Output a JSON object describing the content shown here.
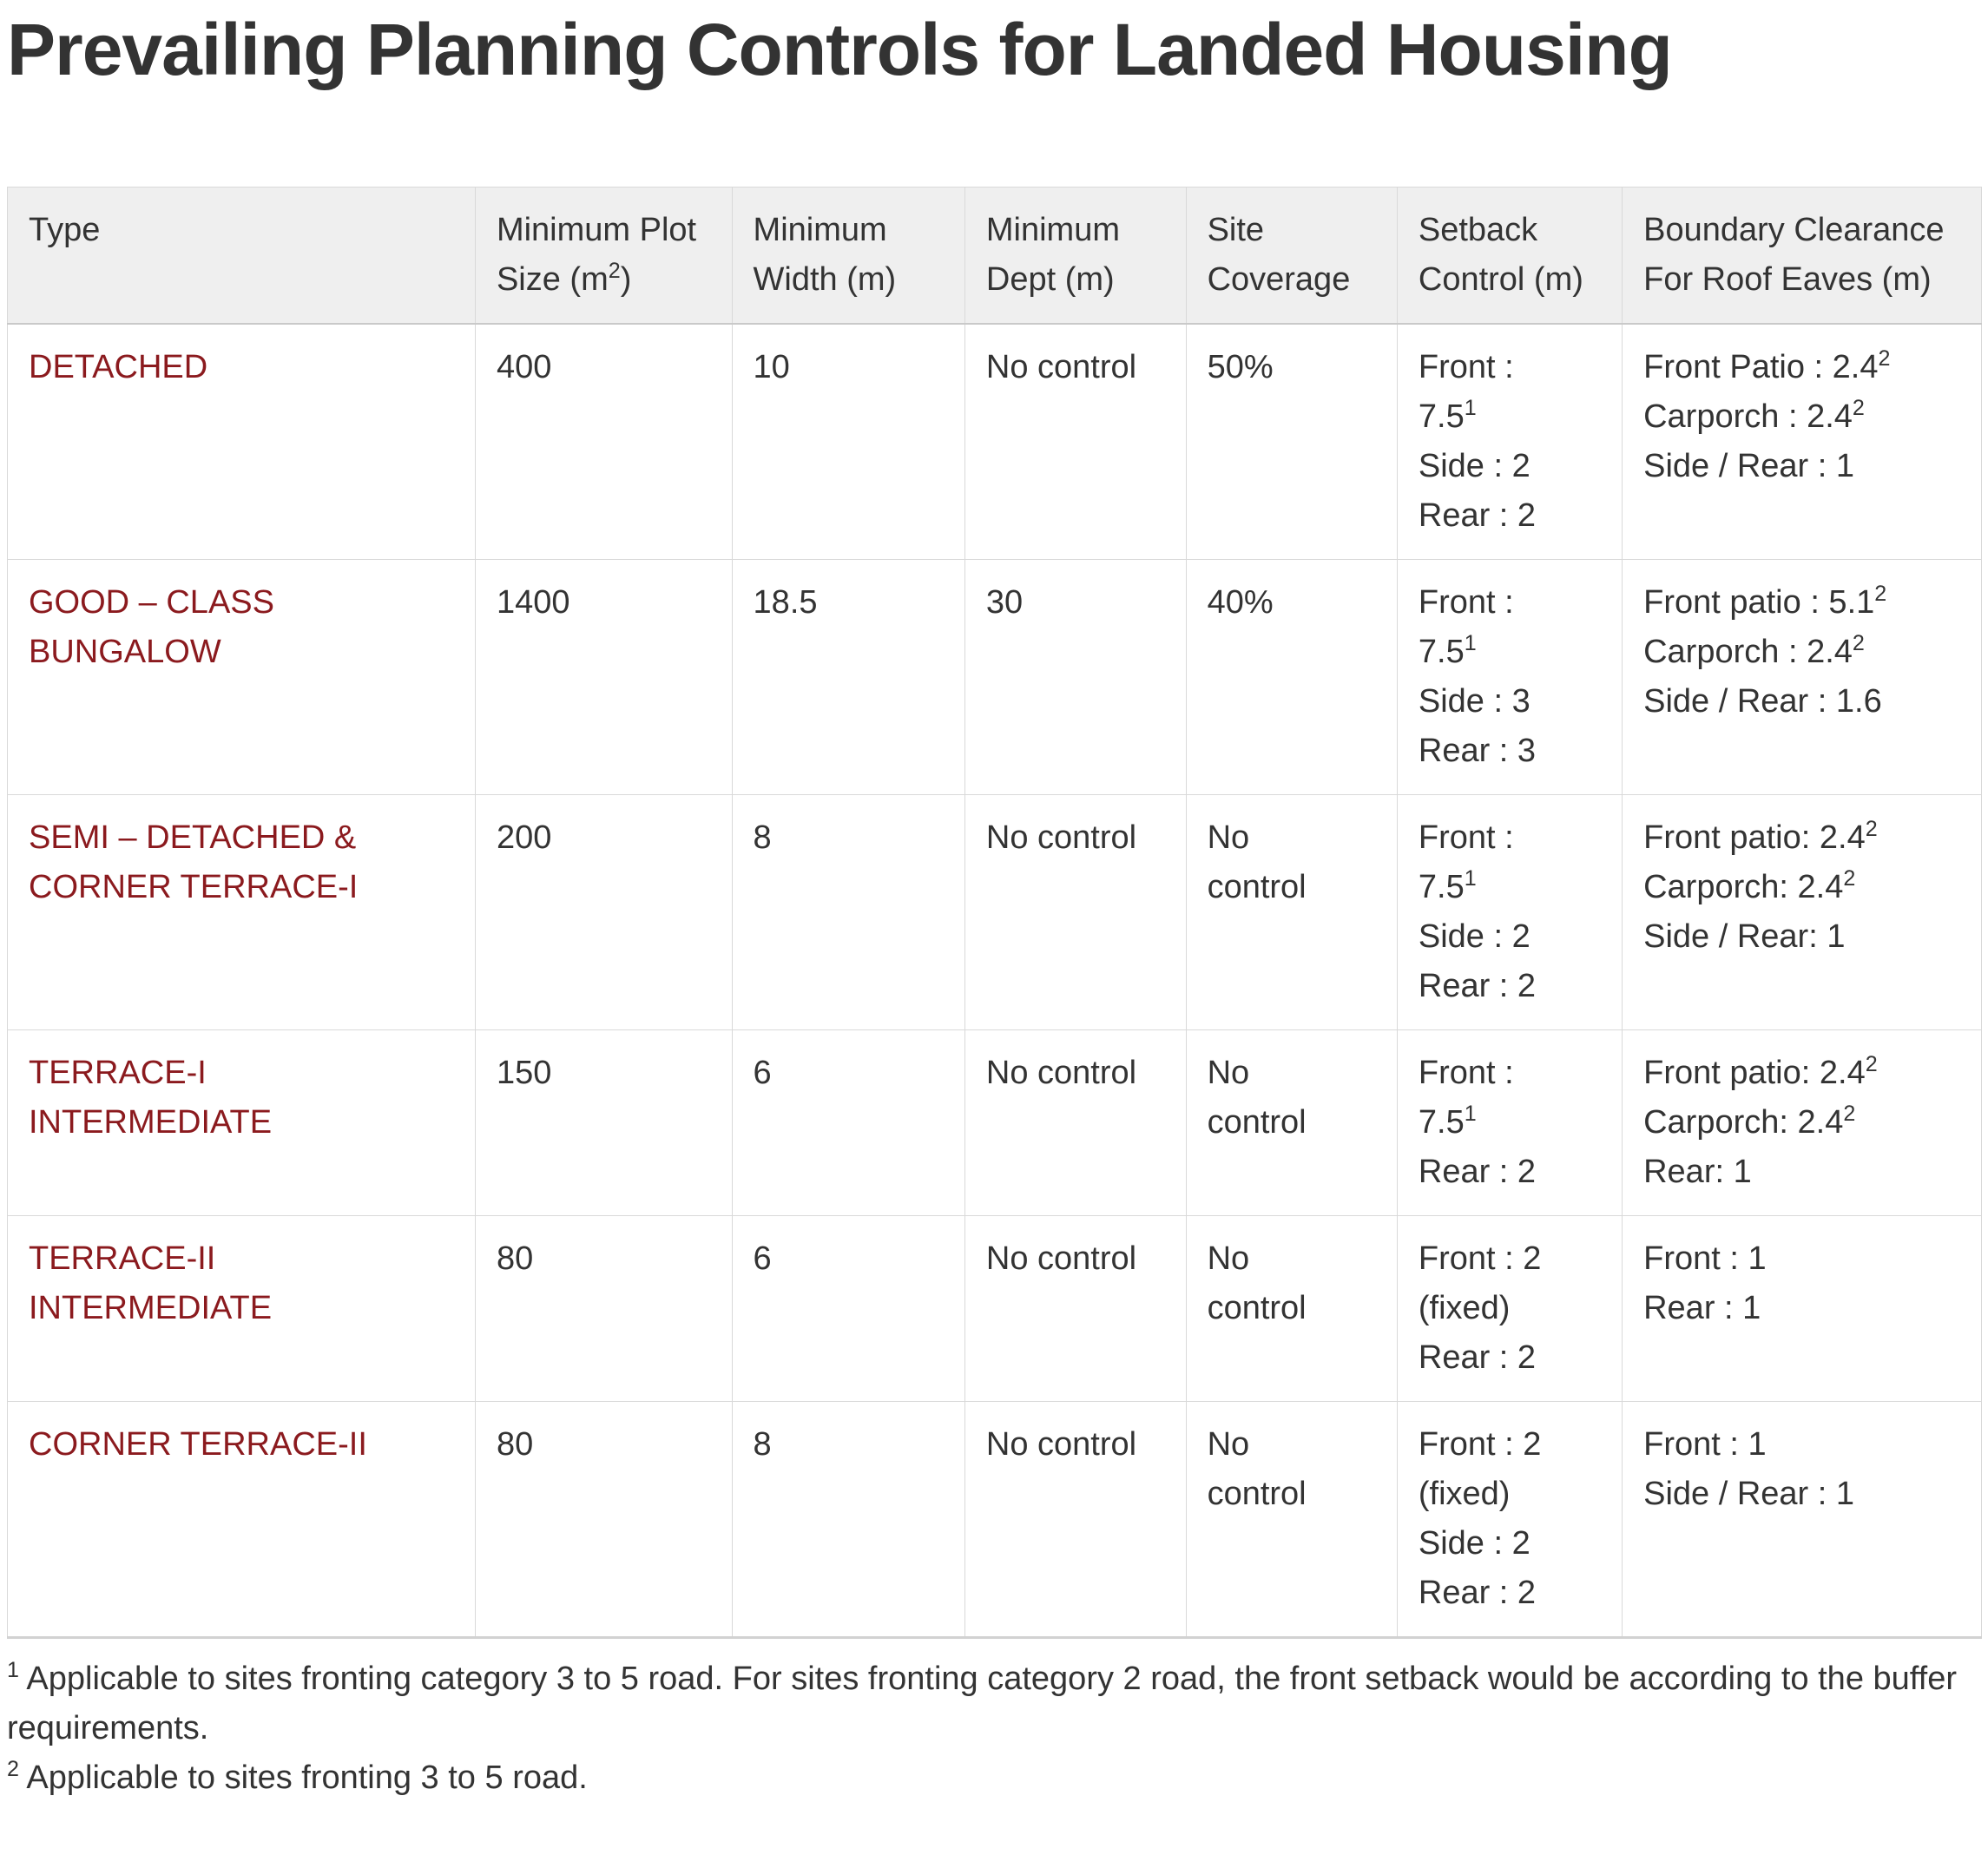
{
  "page": {
    "title": "Prevailing Planning Controls for Landed Housing"
  },
  "colors": {
    "type_text_accent": "#8B1A1E",
    "header_background": "#EFEFEF",
    "table_border": "#D9D9D9",
    "body_text": "#333333"
  },
  "table": {
    "columns": [
      {
        "label": "Type"
      },
      {
        "label": "Minimum Plot Size (m^{2})"
      },
      {
        "label": "Minimum Width (m)"
      },
      {
        "label": "Minimum Dept (m)"
      },
      {
        "label": "Site Coverage"
      },
      {
        "label": "Setback Control (m)"
      },
      {
        "label": "Boundary Clearance For Roof Eaves (m)"
      }
    ],
    "rows": [
      {
        "type": "DETACHED",
        "min_plot_size": "400",
        "min_width": "10",
        "min_dept": "No control",
        "site_coverage": "50%",
        "setback_control": "Front :\n7.5^{1}\nSide : 2\nRear : 2",
        "boundary_clearance": "Front Patio : 2.4^{2}\nCarporch : 2.4^{2}\nSide / Rear : 1"
      },
      {
        "type": "GOOD – CLASS BUNGALOW",
        "min_plot_size": "1400",
        "min_width": "18.5",
        "min_dept": "30",
        "site_coverage": "40%",
        "setback_control": "Front :\n7.5^{1}\nSide : 3\nRear : 3",
        "boundary_clearance": "Front patio : 5.1^{2}\nCarporch : 2.4^{2}\nSide / Rear : 1.6"
      },
      {
        "type": "SEMI – DETACHED & CORNER TERRACE-I",
        "min_plot_size": "200",
        "min_width": "8",
        "min_dept": "No control",
        "site_coverage": "No\ncontrol",
        "setback_control": "Front :\n7.5^{1}\nSide : 2\nRear : 2",
        "boundary_clearance": "Front patio: 2.4^{2}\nCarporch: 2.4^{2}\nSide / Rear: 1"
      },
      {
        "type": "TERRACE-I INTERMEDIATE",
        "min_plot_size": "150",
        "min_width": "6",
        "min_dept": "No control",
        "site_coverage": "No\ncontrol",
        "setback_control": "Front :\n7.5^{1}\nRear : 2",
        "boundary_clearance": "Front patio: 2.4^{2}\nCarporch: 2.4^{2}\nRear: 1"
      },
      {
        "type": "TERRACE-II INTERMEDIATE",
        "min_plot_size": "80",
        "min_width": "6",
        "min_dept": "No control",
        "site_coverage": "No\ncontrol",
        "setback_control": "Front : 2\n(fixed)\nRear : 2",
        "boundary_clearance": "Front : 1\nRear : 1"
      },
      {
        "type": "CORNER TERRACE-II",
        "min_plot_size": "80",
        "min_width": "8",
        "min_dept": "No control",
        "site_coverage": "No\ncontrol",
        "setback_control": "Front : 2\n(fixed)\nSide : 2\nRear : 2",
        "boundary_clearance": "Front : 1\nSide / Rear : 1"
      }
    ]
  },
  "footnotes": [
    "^{1} Applicable to sites fronting category 3 to 5 road. For sites fronting category 2 road, the front setback would be according to the buffer requirements.",
    "^{2} Applicable to sites fronting 3 to 5 road."
  ]
}
